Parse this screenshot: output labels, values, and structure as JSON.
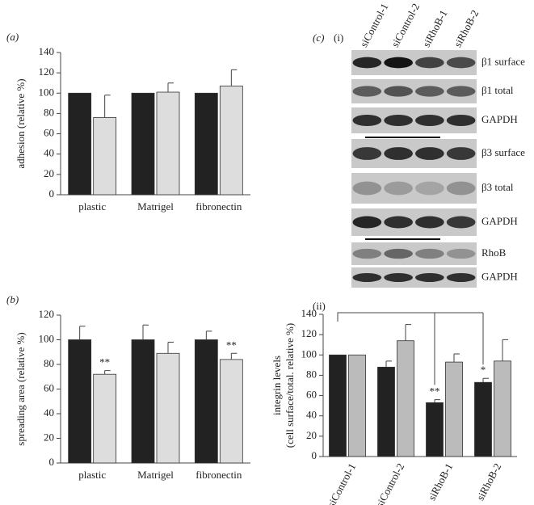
{
  "chart_data": [
    {
      "type": "bar",
      "panel_label": "(a)",
      "ylabel": [
        "adhesion (relative %)"
      ],
      "categories": [
        "plastic",
        "Matrigel",
        "fibronectin"
      ],
      "series": [
        {
          "color": "#222222",
          "values": [
            100,
            100,
            100
          ],
          "errors": [
            null,
            null,
            null
          ]
        },
        {
          "color": "#dddddd",
          "values": [
            76,
            101,
            107
          ],
          "errors": [
            22,
            9,
            16
          ]
        }
      ],
      "ylim": [
        0,
        140
      ],
      "yticks": [
        0,
        20,
        40,
        60,
        80,
        100,
        120,
        140
      ]
    },
    {
      "type": "bar",
      "panel_label": "(b)",
      "ylabel": [
        "spreading area (relative %)"
      ],
      "categories": [
        "plastic",
        "Matrigel",
        "fibronectin"
      ],
      "series": [
        {
          "color": "#222222",
          "values": [
            100,
            100,
            100
          ],
          "errors": [
            11,
            12,
            7
          ],
          "significance": [
            null,
            null,
            null
          ]
        },
        {
          "color": "#dddddd",
          "values": [
            72,
            89,
            84
          ],
          "errors": [
            3,
            9,
            5
          ],
          "significance": [
            "**",
            null,
            "**"
          ]
        }
      ],
      "ylim": [
        0,
        120
      ],
      "yticks": [
        0,
        20,
        40,
        60,
        80,
        100,
        120
      ]
    },
    {
      "type": "bar",
      "panel_label": "(ii)",
      "ylabel": [
        "integrin levels",
        "(cell surface/total. relative %)"
      ],
      "categories": [
        "siControl-1",
        "siControl-2",
        "siRhoB-1",
        "siRhoB-2"
      ],
      "series": [
        {
          "color": "#222222",
          "values": [
            100,
            88,
            53,
            73
          ],
          "errors": [
            null,
            6,
            3,
            4
          ],
          "significance": [
            null,
            null,
            "**",
            "*"
          ]
        },
        {
          "color": "#bbbbbb",
          "values": [
            100,
            114,
            93,
            94
          ],
          "errors": [
            null,
            16,
            8,
            21
          ],
          "significance": [
            null,
            null,
            null,
            null
          ]
        }
      ],
      "ylim": [
        0,
        140
      ],
      "yticks": [
        0,
        20,
        40,
        60,
        80,
        100,
        120,
        140
      ]
    }
  ],
  "blot": {
    "panel_label": "(c)",
    "sub_label": "(i)",
    "lanes": [
      "siControl-1",
      "siControl-2",
      "siRhoB-1",
      "siRhoB-2"
    ],
    "rows": [
      "β1 surface",
      "β1 total",
      "GAPDH",
      "β3 surface",
      "β3 total",
      "GAPDH",
      "RhoB",
      "GAPDH"
    ]
  }
}
